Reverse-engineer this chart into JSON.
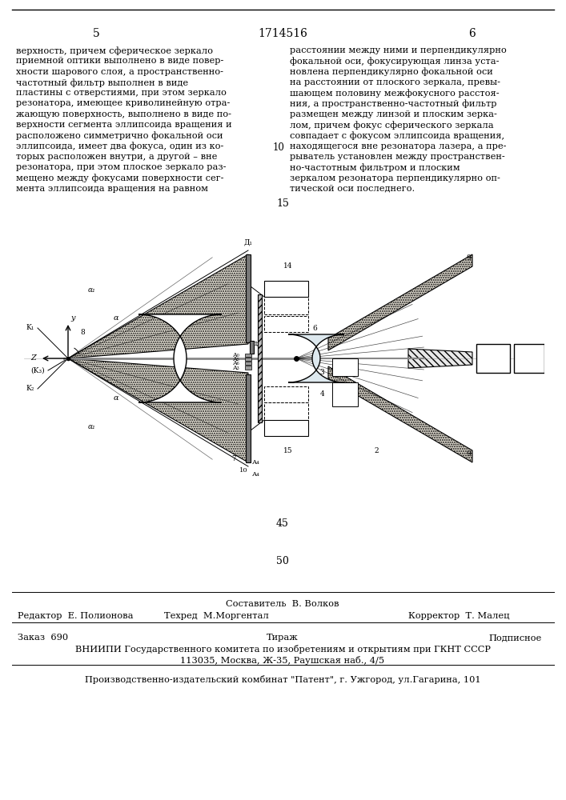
{
  "page_number_left": "5",
  "patent_number": "1714516",
  "page_number_right": "6",
  "line_number_15": "15",
  "text_left": "верхность, причем сферическое зеркало\nприемной оптики выполнено в виде повер-\nхности шарового слоя, а пространственно-\nчастотный фильтр выполнен в виде\nпластины с отверстиями, при этом зеркало\nрезонатора, имеющее криволинейную отра-\nжающую поверхность, выполнено в виде по-\nверхности сегмента эллипсоида вращения и\nрасположено симметрично фокальной оси\nэллипсоида, имеет два фокуса, один из ко-\nторых расположен внутри, а другой – вне\nрезонатора, при этом плоское зеркало раз-\nмещено между фокусами поверхности сег-\nмента эллипсоида вращения на равном",
  "line_number_10": "10",
  "text_right": "расстоянии между ними и перпендикулярно\nфокальной оси, фокусирующая линза уста-\nновлена перпендикулярно фокальной оси\nна расстоянии от плоского зеркала, превы-\nшающем половину межфокусного расстоя-\nния, а пространственно-частотный фильтр\nразмещен между линзой и плоским зерка-\nлом, причем фокус сферического зеркала\nсовпадает с фокусом эллипсоида вращения,\nнаходящегося вне резонатора лазера, а пре-\nрыватель установлен между пространствен-\nно-частотным фильтром и плоским\nзеркалом резонатора перпендикулярно оп-\nтической оси последнего.",
  "number_45": "45",
  "number_50": "50",
  "editor_line": "Составитель  В. Волков",
  "editor_left": "Редактор  Е. Полионова",
  "editor_mid": "Техред  М.Моргентал",
  "editor_right": "Корректор  Т. Малец",
  "order_left": "Заказ  690",
  "order_mid": "Тираж",
  "order_right": "Подписное",
  "vniiipi_line": "ВНИИПИ Государственного комитета по изобретениям и открытиям при ГКНТ СССР",
  "address_line": "113035, Москва, Ж-35, Раушская наб., 4/5",
  "publisher_line": "Производственно-издательский комбинат \"Патент\", г. Ужгород, ул.Гагарина, 101"
}
